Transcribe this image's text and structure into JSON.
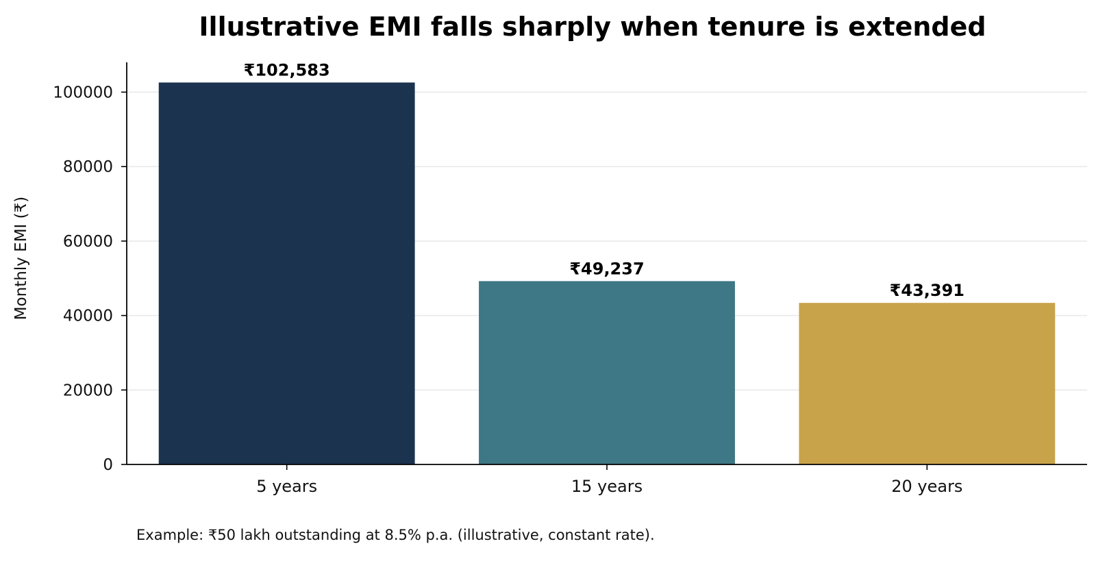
{
  "chart_data": {
    "type": "bar",
    "title": "Illustrative EMI falls sharply when tenure is extended",
    "xlabel": "",
    "ylabel": "Monthly EMI (₹)",
    "categories": [
      "5 years",
      "15 years",
      "20 years"
    ],
    "values": [
      102583,
      49237,
      43391
    ],
    "data_labels": [
      "₹102,583",
      "₹49,237",
      "₹43,391"
    ],
    "bar_colors": [
      "#1b334f",
      "#3e7785",
      "#c8a34a"
    ],
    "ylim": [
      0,
      108000
    ],
    "yticks": [
      0,
      20000,
      40000,
      60000,
      80000,
      100000
    ],
    "ytick_labels": [
      "0",
      "20000",
      "40000",
      "60000",
      "80000",
      "100000"
    ],
    "grid": "y",
    "note": "Example: ₹50 lakh outstanding at 8.5% p.a. (illustrative, constant rate)."
  }
}
